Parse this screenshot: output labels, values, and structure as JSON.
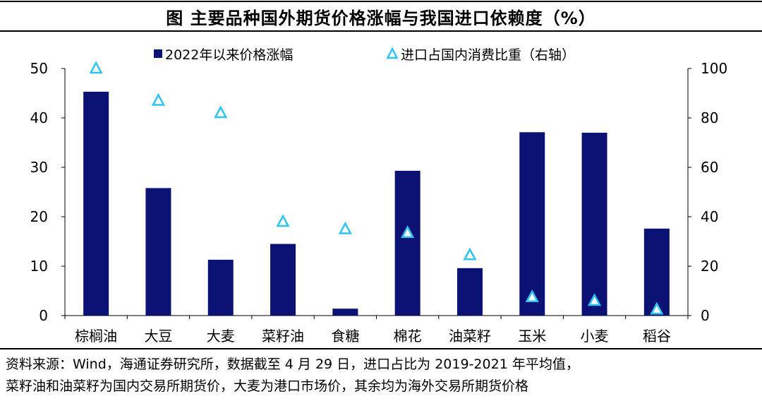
{
  "title": "图  主要品种国外期货价格涨幅与我国进口依赖度（%）",
  "source_line1": "资料来源：Wind，海通证券研究所，数据截至 4 月 29 日，进口占比为 2019-2021 年平均值，",
  "source_line2": "菜籽油和油菜籽为国内交易所期货价，大麦为港口市场价，其余均为海外交易所期货价格",
  "colors": {
    "bar": "#0b1273",
    "triangle": "#2fc3f3"
  },
  "chart_data": {
    "type": "bar",
    "categories": [
      "棕榈油",
      "大豆",
      "大麦",
      "菜籽油",
      "食糖",
      "棉花",
      "油菜籽",
      "玉米",
      "小麦",
      "稻谷"
    ],
    "series": [
      {
        "name": "2022年以来价格涨幅",
        "type": "bar",
        "axis": "left",
        "values": [
          45.3,
          25.8,
          11.3,
          14.5,
          1.4,
          29.3,
          9.6,
          37.1,
          37.0,
          17.6
        ]
      },
      {
        "name": "进口占国内消费比重（右轴）",
        "type": "scatter",
        "marker": "triangle",
        "axis": "right",
        "values": [
          100,
          87,
          82,
          38,
          35,
          33.5,
          24.5,
          7.5,
          6,
          2.5
        ]
      }
    ],
    "ylim": [
      0,
      50
    ],
    "yticks": [
      0,
      10,
      20,
      30,
      40,
      50
    ],
    "y2lim": [
      0,
      100
    ],
    "y2ticks": [
      0,
      20,
      40,
      60,
      80,
      100
    ],
    "legend_position": "top",
    "grid": false
  }
}
